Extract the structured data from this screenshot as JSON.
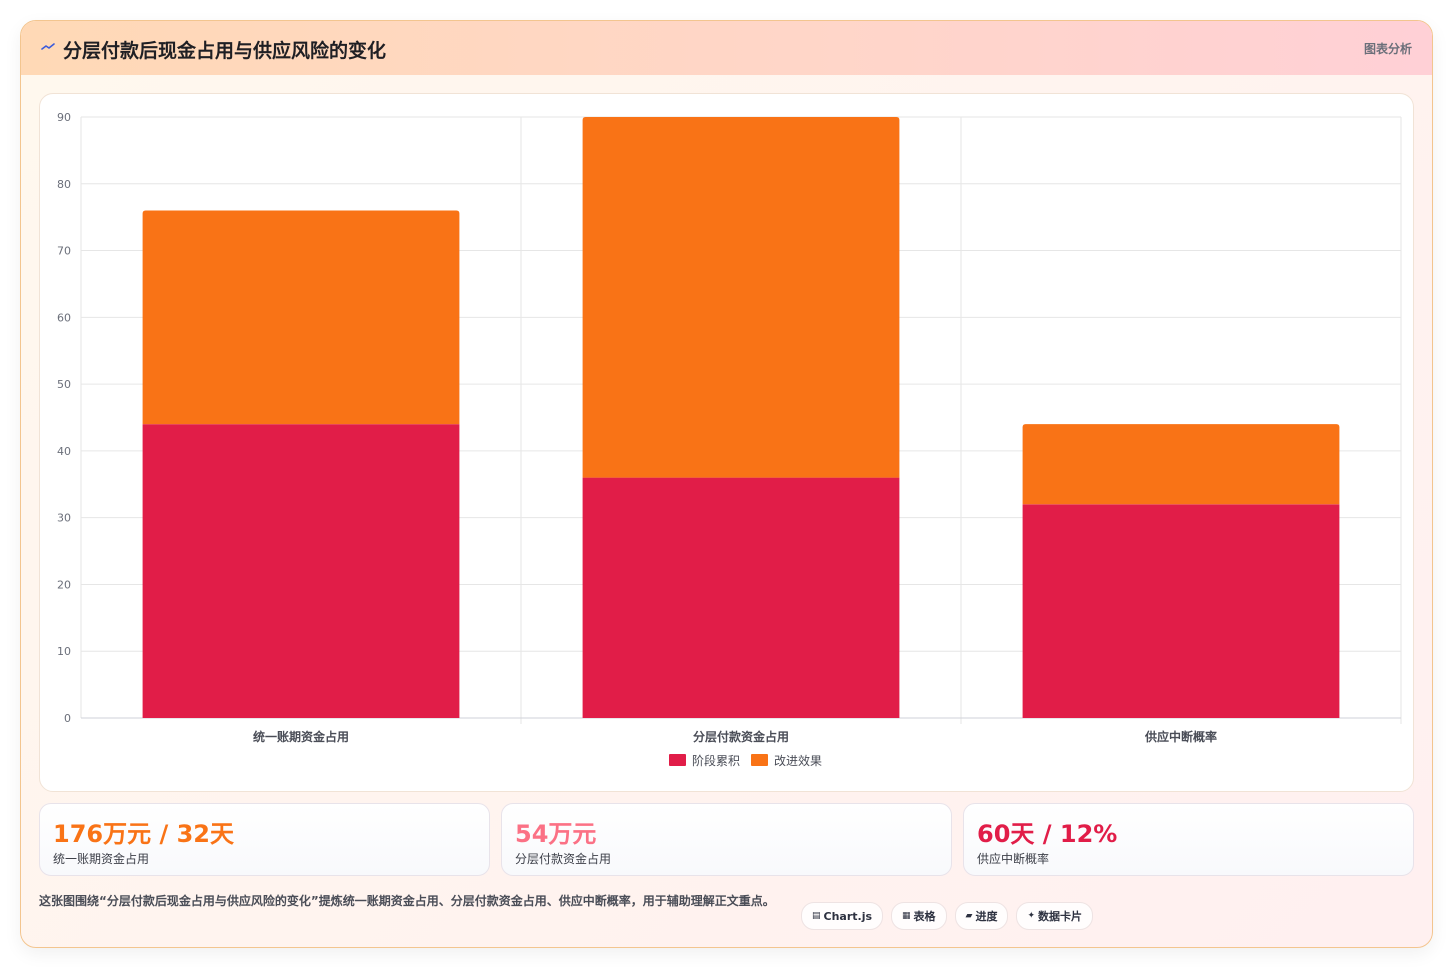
{
  "header": {
    "icon": "sparkline-icon",
    "title": "分层付款后现金占用与供应风险的变化",
    "right_label": "图表分析"
  },
  "chart_data": {
    "type": "bar",
    "stacked": true,
    "categories": [
      "统一账期资金占用",
      "分层付款资金占用",
      "供应中断概率"
    ],
    "series": [
      {
        "name": "阶段累积",
        "color": "#e11d48",
        "values": [
          44,
          36,
          32
        ]
      },
      {
        "name": "改进效果",
        "color": "#f97316",
        "values": [
          32,
          54,
          12
        ]
      }
    ],
    "ylim": [
      0,
      90
    ],
    "yticks": [
      0,
      10,
      20,
      30,
      40,
      50,
      60,
      70,
      80,
      90
    ],
    "grid": true,
    "legend": "bottom"
  },
  "stats": [
    {
      "value": "176万元 / 32天",
      "label": "统一账期资金占用",
      "color": "#f97316"
    },
    {
      "value": "54万元",
      "label": "分层付款资金占用",
      "color": "#fb7185"
    },
    {
      "value": "60天 / 12%",
      "label": "供应中断概率",
      "color": "#e11d48"
    }
  ],
  "summary": "这张图围绕“分层付款后现金占用与供应风险的变化”提炼统一账期资金占用、分层付款资金占用、供应中断概率，用于辅助理解正文重点。",
  "chips": [
    {
      "icon": "chart-icon",
      "glyph": "▤",
      "label": "Chart.js"
    },
    {
      "icon": "table-icon",
      "glyph": "▦",
      "label": "表格"
    },
    {
      "icon": "progress-icon",
      "glyph": "▰",
      "label": "进度"
    },
    {
      "icon": "sparkle-icon",
      "glyph": "✦",
      "label": "数据卡片"
    }
  ]
}
